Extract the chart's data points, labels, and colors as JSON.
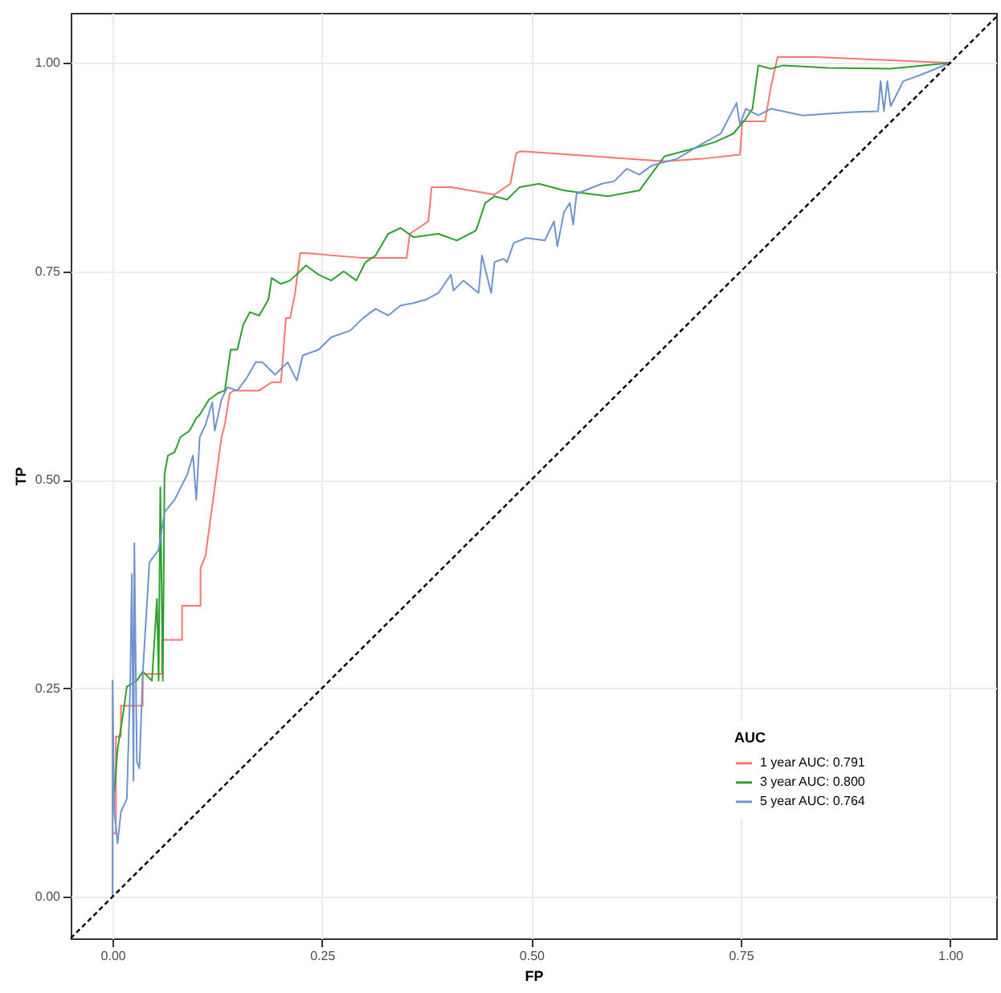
{
  "chart_data": {
    "type": "line",
    "xlabel": "FP",
    "ylabel": "TP",
    "legend_title": "AUC",
    "legend": "bottom right",
    "grid": true,
    "xlim": [
      -0.05,
      1.055
    ],
    "ylim": [
      -0.05,
      1.06
    ],
    "xticks": [
      {
        "value": 0,
        "label": "0.00"
      },
      {
        "value": 0.25,
        "label": "0.25"
      },
      {
        "value": 0.5,
        "label": "0.50"
      },
      {
        "value": 0.75,
        "label": "0.75"
      },
      {
        "value": 1,
        "label": "1.00"
      }
    ],
    "yticks": [
      {
        "value": 0,
        "label": "0.00"
      },
      {
        "value": 0.25,
        "label": "0.25"
      },
      {
        "value": 0.5,
        "label": "0.50"
      },
      {
        "value": 0.75,
        "label": "0.75"
      },
      {
        "value": 1,
        "label": "1.00"
      }
    ],
    "series": [
      {
        "name": "1 year AUC: 0.791",
        "color": "#f8766d",
        "x": [
          0,
          0.004,
          0.004,
          0.01,
          0.01,
          0.036,
          0.036,
          0.059,
          0.059,
          0.083,
          0.083,
          0.105,
          0.105,
          0.111,
          0.117,
          0.122,
          0.126,
          0.13,
          0.134,
          0.14,
          0.145,
          0.175,
          0.19,
          0.201,
          0.203,
          0.207,
          0.212,
          0.218,
          0.224,
          0.231,
          0.299,
          0.351,
          0.355,
          0.377,
          0.381,
          0.404,
          0.456,
          0.475,
          0.482,
          0.488,
          0.659,
          0.704,
          0.749,
          0.752,
          0.779,
          0.786,
          0.794,
          0.839,
          1.0
        ],
        "values": [
          0.076,
          0.076,
          0.192,
          0.192,
          0.229,
          0.229,
          0.267,
          0.267,
          0.308,
          0.308,
          0.349,
          0.349,
          0.394,
          0.409,
          0.454,
          0.491,
          0.521,
          0.551,
          0.566,
          0.604,
          0.607,
          0.607,
          0.617,
          0.617,
          0.641,
          0.694,
          0.694,
          0.724,
          0.772,
          0.772,
          0.766,
          0.766,
          0.795,
          0.81,
          0.851,
          0.851,
          0.842,
          0.855,
          0.892,
          0.894,
          0.882,
          0.885,
          0.89,
          0.93,
          0.93,
          0.971,
          1.007,
          1.007,
          1.0
        ]
      },
      {
        "name": "3 year AUC: 0.800",
        "color": "#2ca02c",
        "x": [
          0.002,
          0.006,
          0.014,
          0.017,
          0.029,
          0.036,
          0.047,
          0.053,
          0.055,
          0.057,
          0.06,
          0.062,
          0.066,
          0.074,
          0.081,
          0.092,
          0.1,
          0.104,
          0.115,
          0.126,
          0.134,
          0.141,
          0.149,
          0.156,
          0.164,
          0.175,
          0.186,
          0.19,
          0.201,
          0.212,
          0.231,
          0.246,
          0.261,
          0.276,
          0.291,
          0.302,
          0.314,
          0.329,
          0.344,
          0.359,
          0.389,
          0.411,
          0.434,
          0.445,
          0.456,
          0.471,
          0.486,
          0.509,
          0.539,
          0.569,
          0.591,
          0.629,
          0.659,
          0.689,
          0.719,
          0.741,
          0.756,
          0.764,
          0.771,
          0.786,
          0.801,
          0.854,
          0.929,
          1.0
        ],
        "values": [
          0.124,
          0.177,
          0.229,
          0.252,
          0.259,
          0.27,
          0.259,
          0.357,
          0.259,
          0.491,
          0.259,
          0.506,
          0.529,
          0.533,
          0.551,
          0.559,
          0.574,
          0.578,
          0.596,
          0.604,
          0.607,
          0.656,
          0.656,
          0.686,
          0.701,
          0.697,
          0.716,
          0.742,
          0.735,
          0.739,
          0.757,
          0.746,
          0.739,
          0.75,
          0.739,
          0.761,
          0.769,
          0.795,
          0.802,
          0.791,
          0.795,
          0.787,
          0.799,
          0.832,
          0.84,
          0.836,
          0.851,
          0.855,
          0.847,
          0.843,
          0.84,
          0.847,
          0.888,
          0.896,
          0.905,
          0.915,
          0.933,
          0.945,
          0.997,
          0.993,
          0.997,
          0.994,
          0.993,
          1.0
        ]
      },
      {
        "name": "5 year AUC: 0.764",
        "color": "#7094cd",
        "x": [
          0,
          0,
          0.002,
          0.006,
          0.01,
          0.017,
          0.021,
          0.023,
          0.025,
          0.026,
          0.029,
          0.032,
          0.036,
          0.044,
          0.055,
          0.062,
          0.074,
          0.089,
          0.096,
          0.1,
          0.104,
          0.111,
          0.119,
          0.122,
          0.13,
          0.137,
          0.149,
          0.16,
          0.171,
          0.179,
          0.194,
          0.209,
          0.22,
          0.227,
          0.246,
          0.261,
          0.284,
          0.299,
          0.314,
          0.329,
          0.344,
          0.359,
          0.374,
          0.389,
          0.404,
          0.407,
          0.419,
          0.437,
          0.441,
          0.452,
          0.456,
          0.467,
          0.471,
          0.479,
          0.494,
          0.516,
          0.527,
          0.531,
          0.539,
          0.546,
          0.55,
          0.554,
          0.584,
          0.599,
          0.614,
          0.629,
          0.644,
          0.659,
          0.674,
          0.704,
          0.726,
          0.745,
          0.749,
          0.756,
          0.771,
          0.786,
          0.824,
          0.854,
          0.884,
          0.914,
          0.917,
          0.921,
          0.925,
          0.929,
          0.944,
          0.966,
          1.0
        ],
        "values": [
          0,
          0.259,
          0.102,
          0.064,
          0.102,
          0.117,
          0.252,
          0.387,
          0.139,
          0.424,
          0.162,
          0.154,
          0.267,
          0.401,
          0.416,
          0.461,
          0.476,
          0.506,
          0.529,
          0.476,
          0.551,
          0.566,
          0.593,
          0.559,
          0.596,
          0.611,
          0.607,
          0.622,
          0.641,
          0.641,
          0.626,
          0.641,
          0.619,
          0.649,
          0.656,
          0.671,
          0.679,
          0.694,
          0.705,
          0.697,
          0.709,
          0.712,
          0.716,
          0.724,
          0.746,
          0.727,
          0.739,
          0.724,
          0.769,
          0.724,
          0.761,
          0.765,
          0.761,
          0.784,
          0.79,
          0.787,
          0.81,
          0.78,
          0.821,
          0.832,
          0.806,
          0.843,
          0.855,
          0.858,
          0.873,
          0.866,
          0.877,
          0.881,
          0.885,
          0.903,
          0.915,
          0.952,
          0.926,
          0.945,
          0.937,
          0.945,
          0.937,
          0.939,
          0.941,
          0.942,
          0.978,
          0.942,
          0.978,
          0.948,
          0.978,
          0.986,
          1.0
        ]
      },
      {
        "color": "#000000",
        "line_style": "dashed",
        "x": [
          -0.05,
          1.055
        ],
        "values": [
          -0.05,
          1.055
        ]
      }
    ]
  }
}
